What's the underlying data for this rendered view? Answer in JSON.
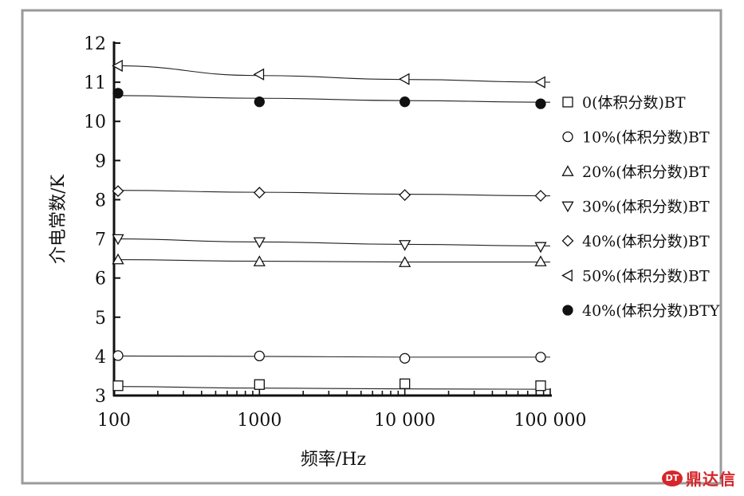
{
  "chart_data": {
    "type": "line",
    "xlabel": "频率/Hz",
    "ylabel": "介电常数/K",
    "x_scale": "log",
    "xlim": [
      100,
      100000
    ],
    "ylim": [
      3,
      12
    ],
    "x_ticks": [
      "100",
      "1000",
      "10 000",
      "100 000"
    ],
    "y_ticks": [
      "3",
      "4",
      "5",
      "6",
      "7",
      "8",
      "9",
      "10",
      "11",
      "12"
    ],
    "grid": false,
    "legend_position": "right",
    "x": [
      100,
      1000,
      10000,
      100000
    ],
    "series": [
      {
        "name": "0(体积分数)BT",
        "marker": "square",
        "filled": false,
        "values": [
          3.25,
          3.28,
          3.3,
          3.25
        ],
        "fit": [
          3.23,
          3.19,
          3.17,
          3.16
        ]
      },
      {
        "name": "10%(体积分数)BT",
        "marker": "circle",
        "filled": false,
        "values": [
          4.02,
          4.01,
          3.95,
          3.98
        ],
        "fit": [
          4.01,
          4.0,
          3.98,
          3.98
        ]
      },
      {
        "name": "20%(体积分数)BT",
        "marker": "triangle-up",
        "filled": false,
        "values": [
          6.47,
          6.42,
          6.4,
          6.42
        ],
        "fit": [
          6.47,
          6.43,
          6.41,
          6.41
        ]
      },
      {
        "name": "30%(体积分数)BT",
        "marker": "triangle-down",
        "filled": false,
        "values": [
          7.0,
          6.92,
          6.85,
          6.8
        ],
        "fit": [
          7.0,
          6.92,
          6.86,
          6.82
        ]
      },
      {
        "name": "40%(体积分数)BT",
        "marker": "diamond",
        "filled": false,
        "values": [
          8.22,
          8.18,
          8.12,
          8.1
        ],
        "fit": [
          8.24,
          8.19,
          8.14,
          8.1
        ]
      },
      {
        "name": "50%(体积分数)BT",
        "marker": "triangle-left",
        "filled": false,
        "values": [
          11.42,
          11.2,
          11.08,
          11.0
        ],
        "fit": [
          11.42,
          11.17,
          11.07,
          11.0
        ]
      },
      {
        "name": "40%(体积分数)BTY",
        "marker": "circle",
        "filled": true,
        "values": [
          10.72,
          10.5,
          10.5,
          10.45
        ],
        "fit": [
          10.66,
          10.59,
          10.53,
          10.49
        ]
      }
    ]
  },
  "watermark": {
    "logo": "DT",
    "text": "鼎达信"
  }
}
